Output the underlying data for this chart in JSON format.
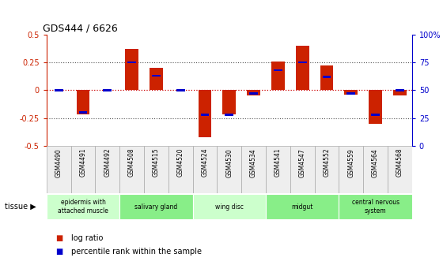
{
  "title": "GDS444 / 6626",
  "samples": [
    "GSM4490",
    "GSM4491",
    "GSM4492",
    "GSM4508",
    "GSM4515",
    "GSM4520",
    "GSM4524",
    "GSM4530",
    "GSM4534",
    "GSM4541",
    "GSM4547",
    "GSM4552",
    "GSM4559",
    "GSM4564",
    "GSM4568"
  ],
  "log_ratio": [
    0.0,
    -0.22,
    0.0,
    0.37,
    0.2,
    0.0,
    -0.42,
    -0.22,
    -0.05,
    0.26,
    0.4,
    0.22,
    -0.04,
    -0.3,
    -0.05
  ],
  "percentile_rank": [
    50,
    30,
    50,
    75,
    63,
    50,
    28,
    28,
    47,
    68,
    75,
    62,
    47,
    28,
    50
  ],
  "tissues": [
    {
      "label": "epidermis with\nattached muscle",
      "start": 0,
      "end": 3,
      "color": "#ccffcc"
    },
    {
      "label": "salivary gland",
      "start": 3,
      "end": 6,
      "color": "#88ee88"
    },
    {
      "label": "wing disc",
      "start": 6,
      "end": 9,
      "color": "#ccffcc"
    },
    {
      "label": "midgut",
      "start": 9,
      "end": 12,
      "color": "#88ee88"
    },
    {
      "label": "central nervous\nsystem",
      "start": 12,
      "end": 15,
      "color": "#88ee88"
    }
  ],
  "ylim": [
    -0.5,
    0.5
  ],
  "y2lim": [
    0,
    100
  ],
  "bar_color_red": "#cc2200",
  "bar_color_blue": "#0000cc",
  "dotted_color": "#555555",
  "zero_line_color": "#cc0000",
  "bar_width": 0.55,
  "blue_bar_width": 0.35,
  "blue_bar_height": 0.018
}
